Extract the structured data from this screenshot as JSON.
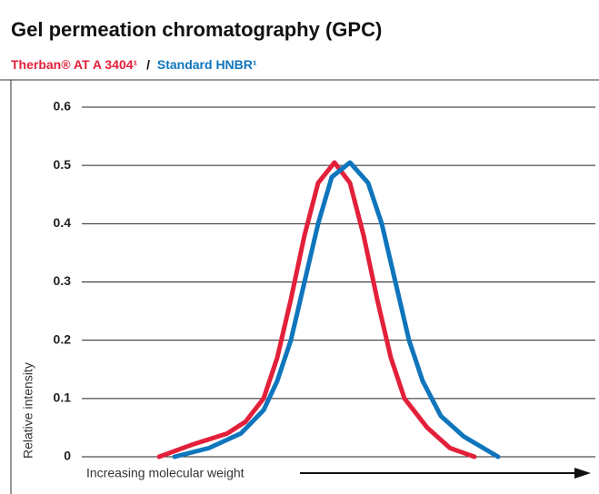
{
  "chart_data": {
    "type": "line",
    "title": "Gel permeation chromatography (GPC)",
    "subtitle_separator": "/",
    "xlabel": "Increasing molecular weight",
    "ylabel": "Relative intensity",
    "xlim": [
      0,
      565
    ],
    "ylim": [
      0,
      0.6
    ],
    "yticks": [
      0,
      0.1,
      0.2,
      0.3,
      0.4,
      0.5,
      0.6
    ],
    "grid": true,
    "series": [
      {
        "name": "Therban® AT A 3404¹",
        "color": "#e3203a",
        "x": [
          85,
          120,
          160,
          180,
          200,
          215,
          230,
          245,
          260,
          278,
          295,
          310,
          325,
          340,
          355,
          380,
          405,
          432
        ],
        "values": [
          0,
          0.02,
          0.04,
          0.06,
          0.1,
          0.17,
          0.27,
          0.38,
          0.47,
          0.505,
          0.47,
          0.38,
          0.27,
          0.17,
          0.1,
          0.05,
          0.015,
          0
        ]
      },
      {
        "name": "Standard HNBR¹",
        "color": "#0f75bc",
        "x": [
          102,
          140,
          175,
          200,
          215,
          230,
          245,
          260,
          275,
          295,
          315,
          330,
          345,
          360,
          375,
          395,
          420,
          458
        ],
        "values": [
          0,
          0.015,
          0.04,
          0.08,
          0.13,
          0.2,
          0.3,
          0.4,
          0.48,
          0.505,
          0.47,
          0.4,
          0.3,
          0.2,
          0.13,
          0.07,
          0.035,
          0
        ]
      }
    ]
  }
}
